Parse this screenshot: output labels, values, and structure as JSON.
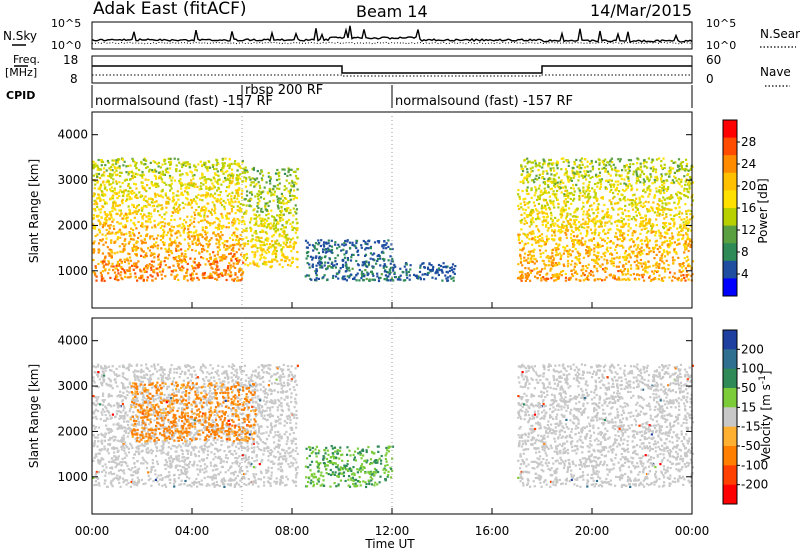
{
  "header": {
    "station": "Adak East (fitACF)",
    "beam": "Beam 14",
    "date": "14/Mar/2015"
  },
  "noise_panel": {
    "left_label": "N.Sky",
    "left_ticks": [
      "10^5",
      "10^0"
    ],
    "right_label": "N.Search",
    "right_ticks": [
      "10^5",
      "10^0"
    ]
  },
  "freq_panel": {
    "left_label_1": "Freq.",
    "left_label_2": "[MHz]",
    "left_ticks": [
      "18",
      "8"
    ],
    "right_label": "Nave",
    "right_ticks": [
      "60",
      "0"
    ]
  },
  "cpid_panel": {
    "label": "CPID",
    "segments": [
      {
        "start_ut": "00:00",
        "name": "normalsound (fast) -157 RF"
      },
      {
        "start_ut": "06:00",
        "name": "rbsp 200 RF"
      },
      {
        "start_ut": "12:00",
        "name": "normalsound (fast) -157 RF"
      }
    ]
  },
  "power_colorbar": {
    "label": "Power [dB]",
    "ticks": [
      "28",
      "24",
      "20",
      "16",
      "12",
      "8",
      "4"
    ],
    "colors": [
      "#ff0000",
      "#ff4c00",
      "#ff8c00",
      "#ffc000",
      "#ffe000",
      "#b8d000",
      "#5aa040",
      "#2e8b57",
      "#1f4ea0",
      "#0000ff"
    ]
  },
  "velocity_colorbar": {
    "label": "Velocity [m s",
    "label_sup": "-1",
    "label_end": "]",
    "ticks": [
      "200",
      "100",
      "50",
      "15",
      "-15",
      "-50",
      "-100",
      "-200"
    ],
    "colors": [
      "#1e3ea0",
      "#2f6f8f",
      "#2e8b57",
      "#7ccc3a",
      "#c8c8c8",
      "#ffb030",
      "#ff8000",
      "#ff4000",
      "#ff0000"
    ]
  },
  "chart_data": [
    {
      "type": "heatmap",
      "title": "Power",
      "ylabel": "Slant Range [km]",
      "ylim": [
        180,
        4500
      ],
      "yticks": [
        1000,
        2000,
        3000,
        4000
      ],
      "xlabel": "Time UT",
      "xlim_hours": [
        0,
        24
      ],
      "xticks": [
        "00:00",
        "04:00",
        "08:00",
        "12:00",
        "16:00",
        "20:00",
        "00:00"
      ],
      "regions": [
        {
          "t_start": 0.0,
          "t_end": 6.0,
          "r_min": 800,
          "r_max": 3500,
          "dB": 26
        },
        {
          "t_start": 6.0,
          "t_end": 8.2,
          "r_min": 1100,
          "r_max": 3300,
          "dB": 20
        },
        {
          "t_start": 8.5,
          "t_end": 12.0,
          "r_min": 800,
          "r_max": 1700,
          "dB": 6
        },
        {
          "t_start": 12.0,
          "t_end": 14.5,
          "r_min": 800,
          "r_max": 1200,
          "dB": 4
        },
        {
          "t_start": 17.0,
          "t_end": 24.0,
          "r_min": 800,
          "r_max": 3500,
          "dB": 24
        }
      ]
    },
    {
      "type": "heatmap",
      "title": "Velocity",
      "ylabel": "Slant Range [km]",
      "ylim": [
        180,
        4500
      ],
      "yticks": [
        1000,
        2000,
        3000,
        4000
      ],
      "xlabel": "Time UT",
      "xlim_hours": [
        0,
        24
      ],
      "xticks": [
        "00:00",
        "04:00",
        "08:00",
        "12:00",
        "16:00",
        "20:00",
        "00:00"
      ],
      "regions": [
        {
          "t_start": 0.0,
          "t_end": 8.2,
          "r_min": 800,
          "r_max": 3500,
          "velocity_ms": 0
        },
        {
          "t_start": 1.5,
          "t_end": 6.5,
          "r_min": 1800,
          "r_max": 3100,
          "velocity_ms": -40
        },
        {
          "t_start": 8.5,
          "t_end": 12.0,
          "r_min": 800,
          "r_max": 1700,
          "velocity_ms": 30
        },
        {
          "t_start": 17.0,
          "t_end": 24.0,
          "r_min": 800,
          "r_max": 3500,
          "velocity_ms": 0
        }
      ]
    }
  ]
}
